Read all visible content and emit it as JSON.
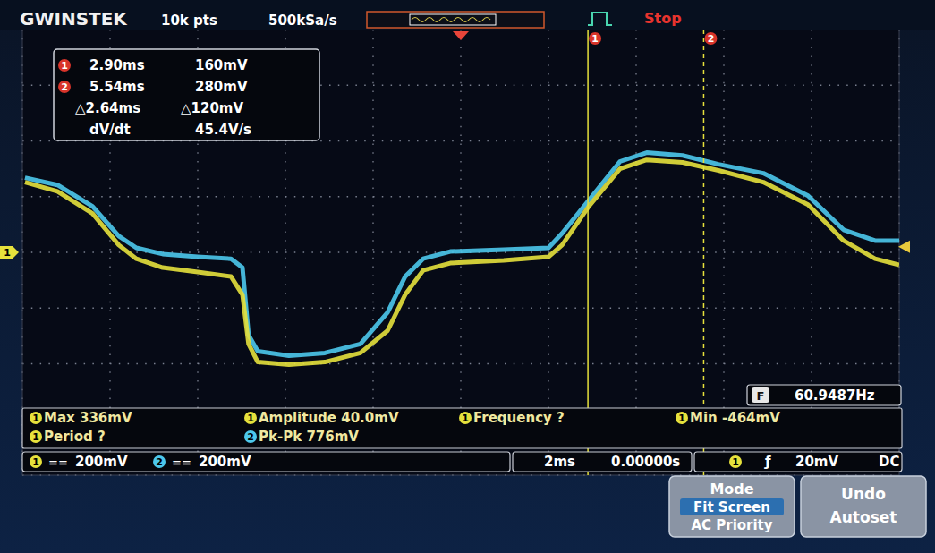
{
  "chart_data": {
    "type": "line",
    "xlim": [
      -10,
      10
    ],
    "xticks": [
      -10,
      -8,
      -6,
      -4,
      -2,
      0,
      2,
      4,
      6,
      8,
      10
    ],
    "ylim": [
      -800,
      800
    ],
    "yticks": [
      -800,
      -600,
      -400,
      -200,
      0,
      200,
      400,
      600,
      800
    ],
    "grid": true,
    "tick_labels": false,
    "x": [
      -9.94,
      -9.2,
      -8.4,
      -7.8,
      -7.4,
      -6.8,
      -6.0,
      -5.24,
      -4.98,
      -4.84,
      -4.63,
      -3.92,
      -3.1,
      -2.29,
      -1.67,
      -1.27,
      -0.86,
      -0.24,
      0.98,
      2.0,
      2.31,
      2.92,
      3.63,
      4.24,
      5.06,
      5.88,
      6.9,
      7.92,
      8.73,
      9.45,
      10.0
    ],
    "series": [
      {
        "name": "1",
        "color": "#e6e13c",
        "values": [
          252,
          219,
          139,
          26,
          -23,
          -55,
          -71,
          -87,
          -152,
          -329,
          -394,
          -403,
          -394,
          -361,
          -281,
          -152,
          -65,
          -39,
          -29,
          -16,
          26,
          165,
          300,
          332,
          323,
          294,
          252,
          171,
          42,
          -23,
          -45
        ]
      },
      {
        "name": "2",
        "color": "#4cc8ec",
        "values": [
          268,
          242,
          165,
          58,
          16,
          -6,
          -16,
          -23,
          -55,
          -297,
          -355,
          -371,
          -361,
          -329,
          -216,
          -87,
          -23,
          3,
          10,
          16,
          68,
          187,
          326,
          358,
          348,
          316,
          284,
          203,
          81,
          42,
          42
        ]
      }
    ]
  },
  "scope": {
    "brand": "GWINSTEK",
    "record_length": "10k pts",
    "sample_rate": "500kSa/s",
    "run_state": "Stop",
    "cursors": [
      {
        "label": "1",
        "x": 2.9,
        "time": "2.90ms",
        "voltage": "160mV"
      },
      {
        "label": "2",
        "x": 5.54,
        "time": "5.54ms",
        "voltage": "280mV"
      }
    ],
    "cursor_delta": {
      "time": "△2.64ms",
      "voltage": "△120mV"
    },
    "slope": {
      "label": "dV/dt",
      "value": "45.4V/s"
    },
    "counter": {
      "badge": "F",
      "value": "60.9487Hz"
    },
    "measurements": [
      {
        "channel": "1",
        "text": "Max 336mV"
      },
      {
        "channel": "1",
        "text": "Amplitude 40.0mV"
      },
      {
        "channel": "1",
        "text": "Frequency ?"
      },
      {
        "channel": "1",
        "text": "Min -464mV"
      },
      {
        "channel": "1",
        "text": "Period ?"
      },
      {
        "channel": "2",
        "text": "Pk-Pk 776mV"
      }
    ],
    "channels": [
      {
        "label": "1",
        "coupling": "==",
        "scale": "200mV"
      },
      {
        "label": "2",
        "coupling": "==",
        "scale": "200mV"
      }
    ],
    "timebase": "2ms",
    "horizontal_position": "0.00000s",
    "trigger": {
      "source": "1",
      "slope": "ƒ",
      "level": 20,
      "level_text": "20mV",
      "coupling": "DC",
      "position": 0
    },
    "ground_level": 0,
    "menu": [
      {
        "title": "Mode",
        "options": [
          "Fit Screen",
          "AC Priority"
        ],
        "selected": 0
      },
      {
        "title": "Undo",
        "options": [
          "Autoset"
        ]
      }
    ]
  }
}
